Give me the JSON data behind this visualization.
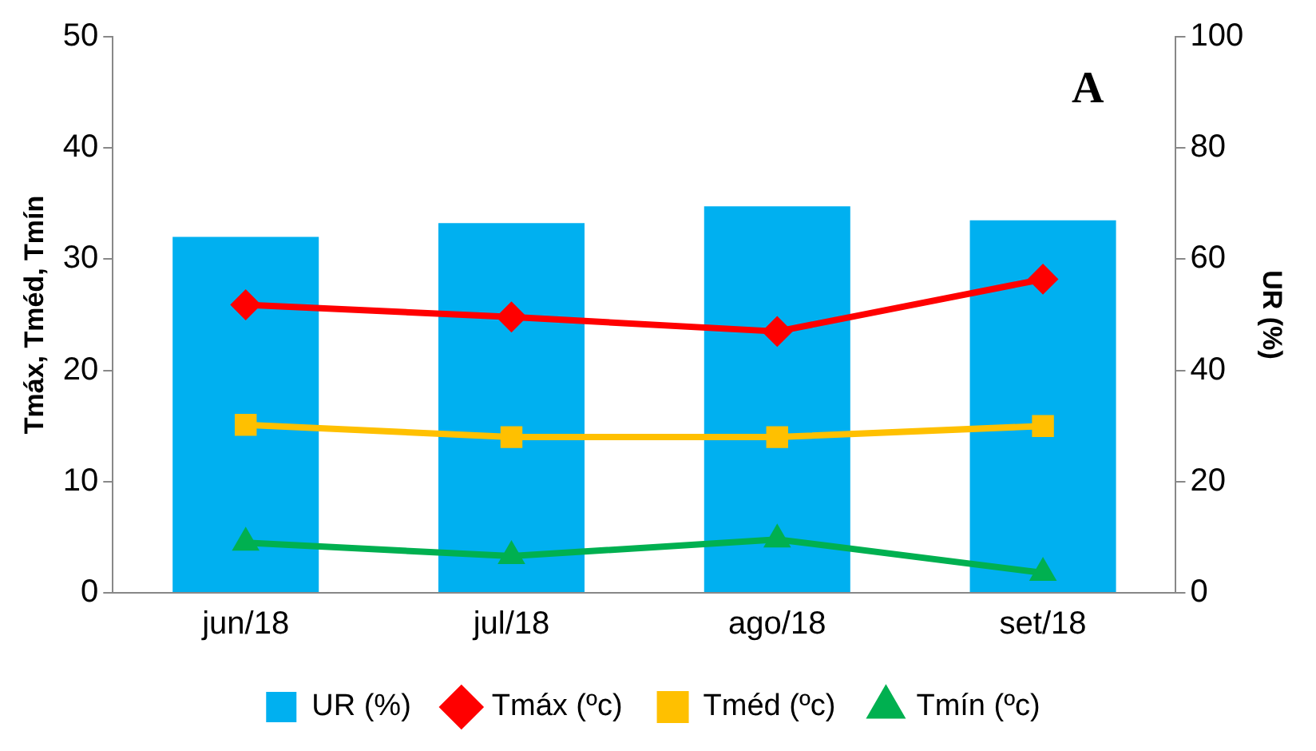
{
  "chart_data": {
    "type": "bar",
    "categories": [
      "jun/18",
      "jul/18",
      "ago/18",
      "set/18"
    ],
    "series": [
      {
        "name": "UR (%)",
        "axis": "y2",
        "color": "#00b0f0",
        "values": [
          64,
          66.5,
          69.5,
          67
        ]
      },
      {
        "name": "Tmáx (ºc)",
        "type": "line",
        "color": "#ff0000",
        "marker": "diamond",
        "values": [
          25.9,
          24.8,
          23.5,
          28.2
        ]
      },
      {
        "name": "Tméd (ºc)",
        "type": "line",
        "color": "#ffc000",
        "marker": "square",
        "values": [
          15.1,
          14.0,
          14.0,
          15.0
        ]
      },
      {
        "name": "Tmín (ºc)",
        "type": "line",
        "color": "#00b050",
        "marker": "triangle",
        "values": [
          4.5,
          3.3,
          4.8,
          1.8
        ]
      }
    ],
    "ylabel": "Tmáx, Tméd, Tmín",
    "y2label": "UR (%)",
    "ylim": [
      0,
      50
    ],
    "yticks": [
      0,
      10,
      20,
      30,
      40,
      50
    ],
    "y2lim": [
      0,
      100
    ],
    "y2ticks": [
      0,
      20,
      40,
      60,
      80,
      100
    ],
    "annotations": [
      "A"
    ],
    "grid": false,
    "legend": "bottom"
  }
}
